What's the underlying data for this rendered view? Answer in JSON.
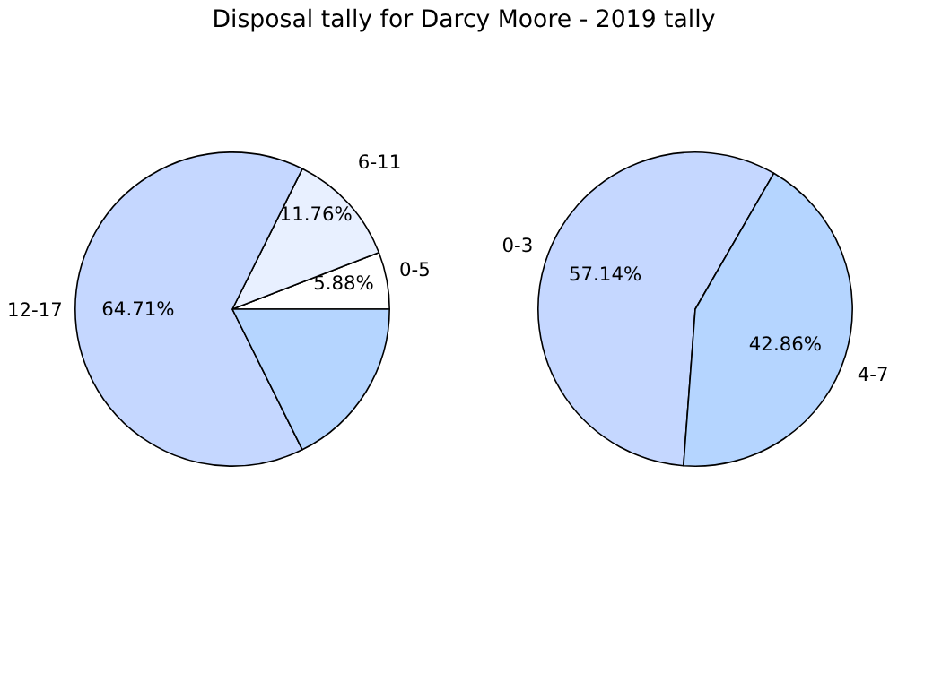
{
  "chart_data": [
    {
      "type": "pie",
      "title": "Disposal tally for Darcy Moore - 2019 tally",
      "categories": [
        "0-5",
        "6-11",
        "12-17",
        null
      ],
      "values": [
        5.88,
        11.76,
        64.71,
        17.65
      ],
      "colors": [
        "#ffffff",
        "#e8f0ff",
        "#c5d7ff",
        "#b5d5ff"
      ],
      "value_labels": [
        "5.88%",
        "11.76%",
        "64.71%",
        null
      ]
    },
    {
      "type": "pie",
      "categories": [
        "0-3",
        "4-7"
      ],
      "values": [
        57.14,
        42.86
      ],
      "colors": [
        "#c5d7ff",
        "#b5d5ff"
      ],
      "value_labels": [
        "57.14%",
        "42.86%"
      ]
    }
  ]
}
